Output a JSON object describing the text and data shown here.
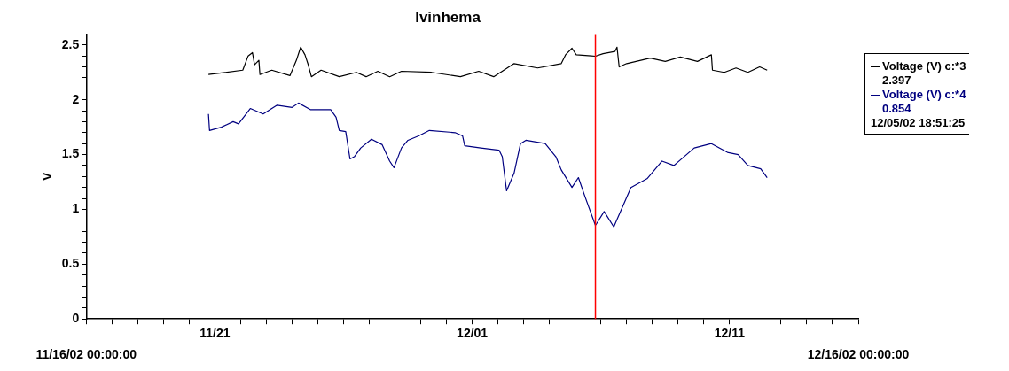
{
  "chart_data": {
    "type": "line",
    "title": "Ivinhema",
    "ylabel": "V",
    "xlim": [
      "--11-16",
      "--12-16"
    ],
    "xticks": [
      {
        "value": "--11-16",
        "label": null
      },
      {
        "value": "--11-17",
        "label": null
      },
      {
        "value": "--11-18",
        "label": null
      },
      {
        "value": "--11-19",
        "label": null
      },
      {
        "value": "--11-20",
        "label": null
      },
      {
        "value": "--11-21",
        "label": "11/21"
      },
      {
        "value": "--11-22",
        "label": null
      },
      {
        "value": "--11-23",
        "label": null
      },
      {
        "value": "--11-24",
        "label": null
      },
      {
        "value": "--11-25",
        "label": null
      },
      {
        "value": "--11-26",
        "label": null
      },
      {
        "value": "--11-27",
        "label": null
      },
      {
        "value": "--11-28",
        "label": null
      },
      {
        "value": "--11-29",
        "label": null
      },
      {
        "value": "--11-30",
        "label": null
      },
      {
        "value": "--12-01",
        "label": "12/01"
      },
      {
        "value": "--12-02",
        "label": null
      },
      {
        "value": "--12-03",
        "label": null
      },
      {
        "value": "--12-04",
        "label": null
      },
      {
        "value": "--12-05",
        "label": null
      },
      {
        "value": "--12-06",
        "label": null
      },
      {
        "value": "--12-07",
        "label": null
      },
      {
        "value": "--12-08",
        "label": null
      },
      {
        "value": "--12-09",
        "label": null
      },
      {
        "value": "--12-10",
        "label": null
      },
      {
        "value": "--12-11",
        "label": "12/11"
      },
      {
        "value": "--12-12",
        "label": null
      },
      {
        "value": "--12-13",
        "label": null
      },
      {
        "value": "--12-14",
        "label": null
      },
      {
        "value": "--12-15",
        "label": null
      },
      {
        "value": "--12-16",
        "label": null
      }
    ],
    "ylim": [
      0,
      2.6
    ],
    "yticks": [
      0,
      {
        "value": 0.1,
        "label": null
      },
      {
        "value": 0.2,
        "label": null
      },
      {
        "value": 0.3,
        "label": null
      },
      {
        "value": 0.4,
        "label": null
      },
      0.5,
      {
        "value": 0.6,
        "label": null
      },
      {
        "value": 0.7,
        "label": null
      },
      {
        "value": 0.8,
        "label": null
      },
      {
        "value": 0.9,
        "label": null
      },
      1,
      {
        "value": 1.1,
        "label": null
      },
      {
        "value": 1.2,
        "label": null
      },
      {
        "value": 1.3,
        "label": null
      },
      {
        "value": 1.4,
        "label": null
      },
      1.5,
      {
        "value": 1.6,
        "label": null
      },
      {
        "value": 1.7,
        "label": null
      },
      {
        "value": 1.8,
        "label": null
      },
      {
        "value": 1.9,
        "label": null
      },
      2,
      {
        "value": 2.1,
        "label": null
      },
      {
        "value": 2.2,
        "label": null
      },
      {
        "value": 2.3,
        "label": null
      },
      {
        "value": 2.4,
        "label": null
      },
      2.5
    ],
    "grid": false,
    "legend": "right",
    "marker": "none",
    "line_style": "solid",
    "series": [
      {
        "name": "Voltage (V) c:*3",
        "color": "#000000",
        "x": [
          "--11-20T18:00",
          "--11-22T02:00",
          "--11-22T07:00",
          "--11-22T11:00",
          "--11-22T13:00",
          "--11-22T17:00",
          "--11-22T18:00",
          "--11-23T05:00",
          "--11-23T22:00",
          "--11-24T04:00",
          "--11-24T08:00",
          "--11-24T12:00",
          "--11-24T15:00",
          "--11-24T18:00",
          "--11-25T03:00",
          "--11-25T20:00",
          "--11-26T12:00",
          "--11-26T21:00",
          "--11-27T08:00",
          "--11-27T19:00",
          "--11-28T06:00",
          "--11-29T10:00",
          "--11-30T13:00",
          "--12-01T06:00",
          "--12-01T20:00",
          "--12-02T15:00",
          "--12-03T13:00",
          "--12-04T11:00",
          "--12-04T15:00",
          "--12-04T21:00",
          "--12-05T01:00",
          "--12-05T15:00",
          "--12-05T18:51",
          "--12-06T02:00",
          "--12-06T13:00",
          "--12-06T15:00",
          "--12-06T17:00",
          "--12-07T00:00",
          "--12-07T22:00",
          "--12-08T12:00",
          "--12-09T02:00",
          "--12-09T18:00",
          "--12-10T07:00",
          "--12-10T08:00",
          "--12-10T19:00",
          "--12-11T06:00",
          "--12-11T17:00",
          "--12-12T04:00",
          "--12-12T11:00"
        ],
        "values": [
          2.23,
          2.27,
          2.4,
          2.43,
          2.32,
          2.36,
          2.23,
          2.27,
          2.22,
          2.36,
          2.48,
          2.41,
          2.32,
          2.21,
          2.27,
          2.21,
          2.25,
          2.21,
          2.26,
          2.21,
          2.26,
          2.25,
          2.21,
          2.26,
          2.21,
          2.33,
          2.29,
          2.33,
          2.41,
          2.47,
          2.41,
          2.4,
          2.397,
          2.42,
          2.44,
          2.48,
          2.3,
          2.33,
          2.38,
          2.35,
          2.39,
          2.35,
          2.41,
          2.27,
          2.25,
          2.29,
          2.25,
          2.3,
          2.27
        ]
      },
      {
        "name": "Voltage (V) c:*4",
        "color": "#000080",
        "x": [
          "--11-20T18:00",
          "--11-20T19:00",
          "--11-21T06:00",
          "--11-21T17:00",
          "--11-21T22:00",
          "--11-22T09:00",
          "--11-22T21:00",
          "--11-23T10:00",
          "--11-24T00:00",
          "--11-24T06:00",
          "--11-24T17:00",
          "--11-25T12:00",
          "--11-25T17:00",
          "--11-25T20:00",
          "--11-26T02:00",
          "--11-26T06:00",
          "--11-26T10:00",
          "--11-26T16:00",
          "--11-27T02:00",
          "--11-27T12:00",
          "--11-27T19:00",
          "--11-27T23:00",
          "--11-28T06:00",
          "--11-28T12:00",
          "--11-28T22:00",
          "--11-29T08:00",
          "--11-30T08:00",
          "--11-30T15:00",
          "--11-30T17:00",
          "--12-01T08:00",
          "--12-02T01:00",
          "--12-02T04:00",
          "--12-02T08:00",
          "--12-02T15:00",
          "--12-02T21:00",
          "--12-03T02:00",
          "--12-03T20:00",
          "--12-04T06:00",
          "--12-04T11:00",
          "--12-04T21:00",
          "--12-05T03:00",
          "--12-05T09:00",
          "--12-05T18:51",
          "--12-05T20:00",
          "--12-06T03:00",
          "--12-06T12:00",
          "--12-07T04:00",
          "--12-07T19:00",
          "--12-08T09:00",
          "--12-08T20:00",
          "--12-09T15:00",
          "--12-10T07:00",
          "--12-10T22:00",
          "--12-11T08:00",
          "--12-11T17:00",
          "--12-12T05:00",
          "--12-12T11:00"
        ],
        "values": [
          1.87,
          1.72,
          1.75,
          1.8,
          1.78,
          1.92,
          1.87,
          1.95,
          1.93,
          1.97,
          1.91,
          1.91,
          1.84,
          1.72,
          1.71,
          1.46,
          1.48,
          1.56,
          1.64,
          1.59,
          1.44,
          1.38,
          1.56,
          1.63,
          1.67,
          1.72,
          1.7,
          1.67,
          1.58,
          1.56,
          1.54,
          1.48,
          1.17,
          1.33,
          1.6,
          1.63,
          1.6,
          1.48,
          1.36,
          1.2,
          1.29,
          1.12,
          0.854,
          0.87,
          0.98,
          0.84,
          1.2,
          1.28,
          1.44,
          1.4,
          1.56,
          1.6,
          1.52,
          1.5,
          1.4,
          1.37,
          1.29
        ]
      }
    ],
    "ref_lines": [
      {
        "axis": "x",
        "value": "--12-05T18:51",
        "color": "#ff0000"
      }
    ],
    "annotations": [
      "2.397",
      "0.854",
      "11/16/02 00:00:00",
      "12/16/02 00:00:00",
      "12/05/02 18:51:25"
    ]
  }
}
